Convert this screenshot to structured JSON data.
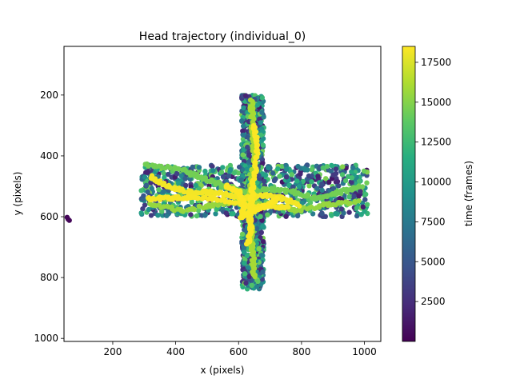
{
  "chart_data": {
    "type": "scatter",
    "title": "Head trajectory (individual_0)",
    "xlabel": "x (pixels)",
    "ylabel": "y (pixels)",
    "xlim": [
      45,
      1052
    ],
    "ylim": [
      1010,
      40
    ],
    "y_inverted": true,
    "grid": false,
    "x_ticks": [
      200,
      400,
      600,
      800,
      1000
    ],
    "y_ticks": [
      200,
      400,
      600,
      800,
      1000
    ],
    "colorbar": {
      "label": "time (frames)",
      "colormap": "viridis",
      "range": [
        0,
        18500
      ],
      "ticks": [
        2500,
        5000,
        7500,
        10000,
        12500,
        15000,
        17500
      ]
    },
    "series": [
      {
        "regions": [
          {
            "x_range": [
              610,
              680
            ],
            "y_range": [
              200,
              840
            ],
            "t_range": [
              1000,
              15000
            ]
          },
          {
            "x_range": [
              290,
              1010
            ],
            "y_range": [
              430,
              600
            ],
            "t_range": [
              1000,
              15000
            ]
          }
        ],
        "paths": [
          {
            "t": 14500,
            "points": [
              [
                300,
                430
              ],
              [
                400,
                440
              ],
              [
                480,
                470
              ],
              [
                560,
                500
              ],
              [
                620,
                520
              ],
              [
                700,
                510
              ],
              [
                780,
                520
              ],
              [
                850,
                540
              ],
              [
                920,
                520
              ],
              [
                990,
                500
              ]
            ]
          },
          {
            "t": 15500,
            "points": [
              [
                320,
                560
              ],
              [
                420,
                580
              ],
              [
                520,
                560
              ],
              [
                600,
                550
              ],
              [
                700,
                560
              ],
              [
                780,
                580
              ],
              [
                880,
                560
              ],
              [
                980,
                550
              ]
            ]
          },
          {
            "t": 16000,
            "points": [
              [
                640,
                220
              ],
              [
                645,
                300
              ],
              [
                650,
                400
              ],
              [
                640,
                500
              ],
              [
                635,
                560
              ],
              [
                640,
                650
              ],
              [
                645,
                720
              ],
              [
                650,
                800
              ]
            ]
          },
          {
            "t": 18200,
            "points": [
              [
                320,
                470
              ],
              [
                380,
                500
              ],
              [
                450,
                520
              ],
              [
                520,
                520
              ],
              [
                580,
                530
              ],
              [
                620,
                540
              ],
              [
                680,
                530
              ],
              [
                740,
                540
              ],
              [
                790,
                560
              ]
            ]
          },
          {
            "t": 18300,
            "points": [
              [
                310,
                540
              ],
              [
                380,
                540
              ],
              [
                440,
                535
              ],
              [
                520,
                540
              ],
              [
                600,
                555
              ],
              [
                650,
                570
              ],
              [
                700,
                565
              ],
              [
                760,
                570
              ]
            ]
          },
          {
            "t": 18400,
            "points": [
              [
                650,
                300
              ],
              [
                660,
                360
              ],
              [
                655,
                430
              ],
              [
                645,
                500
              ],
              [
                640,
                560
              ],
              [
                635,
                600
              ],
              [
                640,
                640
              ],
              [
                630,
                690
              ]
            ]
          },
          {
            "t": 18450,
            "points": [
              [
                560,
                500
              ],
              [
                600,
                520
              ],
              [
                620,
                560
              ],
              [
                610,
                600
              ],
              [
                650,
                580
              ],
              [
                700,
                560
              ],
              [
                720,
                540
              ]
            ]
          }
        ]
      },
      {
        "points": [
          [
            55,
            602
          ],
          [
            58,
            608
          ],
          [
            62,
            612
          ]
        ],
        "t": 300
      }
    ]
  }
}
